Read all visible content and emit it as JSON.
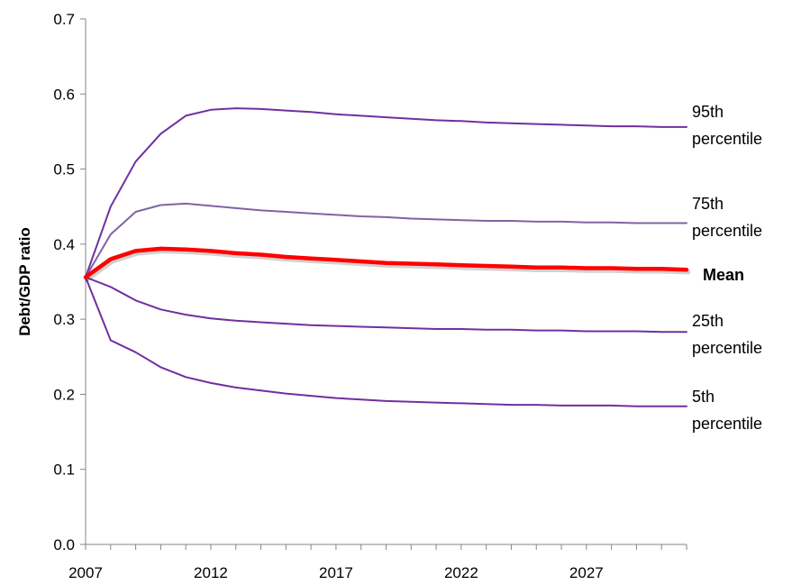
{
  "chart_data": {
    "type": "line",
    "ylabel": "Debt/GDP ratio",
    "xlabel": "",
    "title": "",
    "ylim": [
      0,
      0.7
    ],
    "yticks": [
      "0.0",
      "0.1",
      "0.2",
      "0.3",
      "0.4",
      "0.5",
      "0.6",
      "0.7"
    ],
    "xlim": [
      2007,
      2031
    ],
    "xticks": [
      "2007",
      "2012",
      "2017",
      "2022",
      "2027"
    ],
    "grid": false,
    "legend": "inline labels at right end of each line",
    "x": [
      2007,
      2008,
      2009,
      2010,
      2011,
      2012,
      2013,
      2014,
      2015,
      2016,
      2017,
      2018,
      2019,
      2020,
      2021,
      2022,
      2023,
      2024,
      2025,
      2026,
      2027,
      2028,
      2029,
      2030,
      2031
    ],
    "series": [
      {
        "name_lines": [
          "95th",
          "percentile"
        ],
        "color": "#7030a0",
        "width": 2,
        "values": [
          0.356,
          0.45,
          0.51,
          0.547,
          0.571,
          0.579,
          0.581,
          0.58,
          0.578,
          0.576,
          0.573,
          0.571,
          0.569,
          0.567,
          0.565,
          0.564,
          0.562,
          0.561,
          0.56,
          0.559,
          0.558,
          0.557,
          0.557,
          0.556,
          0.556
        ]
      },
      {
        "name_lines": [
          "75th",
          "percentile"
        ],
        "color": "#8064a2",
        "width": 2,
        "values": [
          0.356,
          0.413,
          0.443,
          0.452,
          0.454,
          0.451,
          0.448,
          0.445,
          0.443,
          0.441,
          0.439,
          0.437,
          0.436,
          0.434,
          0.433,
          0.432,
          0.431,
          0.431,
          0.43,
          0.43,
          0.429,
          0.429,
          0.428,
          0.428,
          0.428
        ]
      },
      {
        "name_lines": [
          "Mean"
        ],
        "color": "#ff0000",
        "width": 4.5,
        "bold": true,
        "values": [
          0.356,
          0.38,
          0.391,
          0.394,
          0.393,
          0.391,
          0.388,
          0.386,
          0.383,
          0.381,
          0.379,
          0.377,
          0.375,
          0.374,
          0.373,
          0.372,
          0.371,
          0.37,
          0.369,
          0.369,
          0.368,
          0.368,
          0.367,
          0.367,
          0.366
        ]
      },
      {
        "name_lines": [
          "25th",
          "percentile"
        ],
        "color": "#7030a0",
        "width": 2,
        "values": [
          0.356,
          0.343,
          0.325,
          0.313,
          0.306,
          0.301,
          0.298,
          0.296,
          0.294,
          0.292,
          0.291,
          0.29,
          0.289,
          0.288,
          0.287,
          0.287,
          0.286,
          0.286,
          0.285,
          0.285,
          0.284,
          0.284,
          0.284,
          0.283,
          0.283
        ]
      },
      {
        "name_lines": [
          "5th",
          "percentile"
        ],
        "color": "#7030a0",
        "width": 2,
        "values": [
          0.356,
          0.272,
          0.256,
          0.236,
          0.223,
          0.215,
          0.209,
          0.205,
          0.201,
          0.198,
          0.195,
          0.193,
          0.191,
          0.19,
          0.189,
          0.188,
          0.187,
          0.186,
          0.186,
          0.185,
          0.185,
          0.185,
          0.184,
          0.184,
          0.184
        ]
      }
    ]
  }
}
